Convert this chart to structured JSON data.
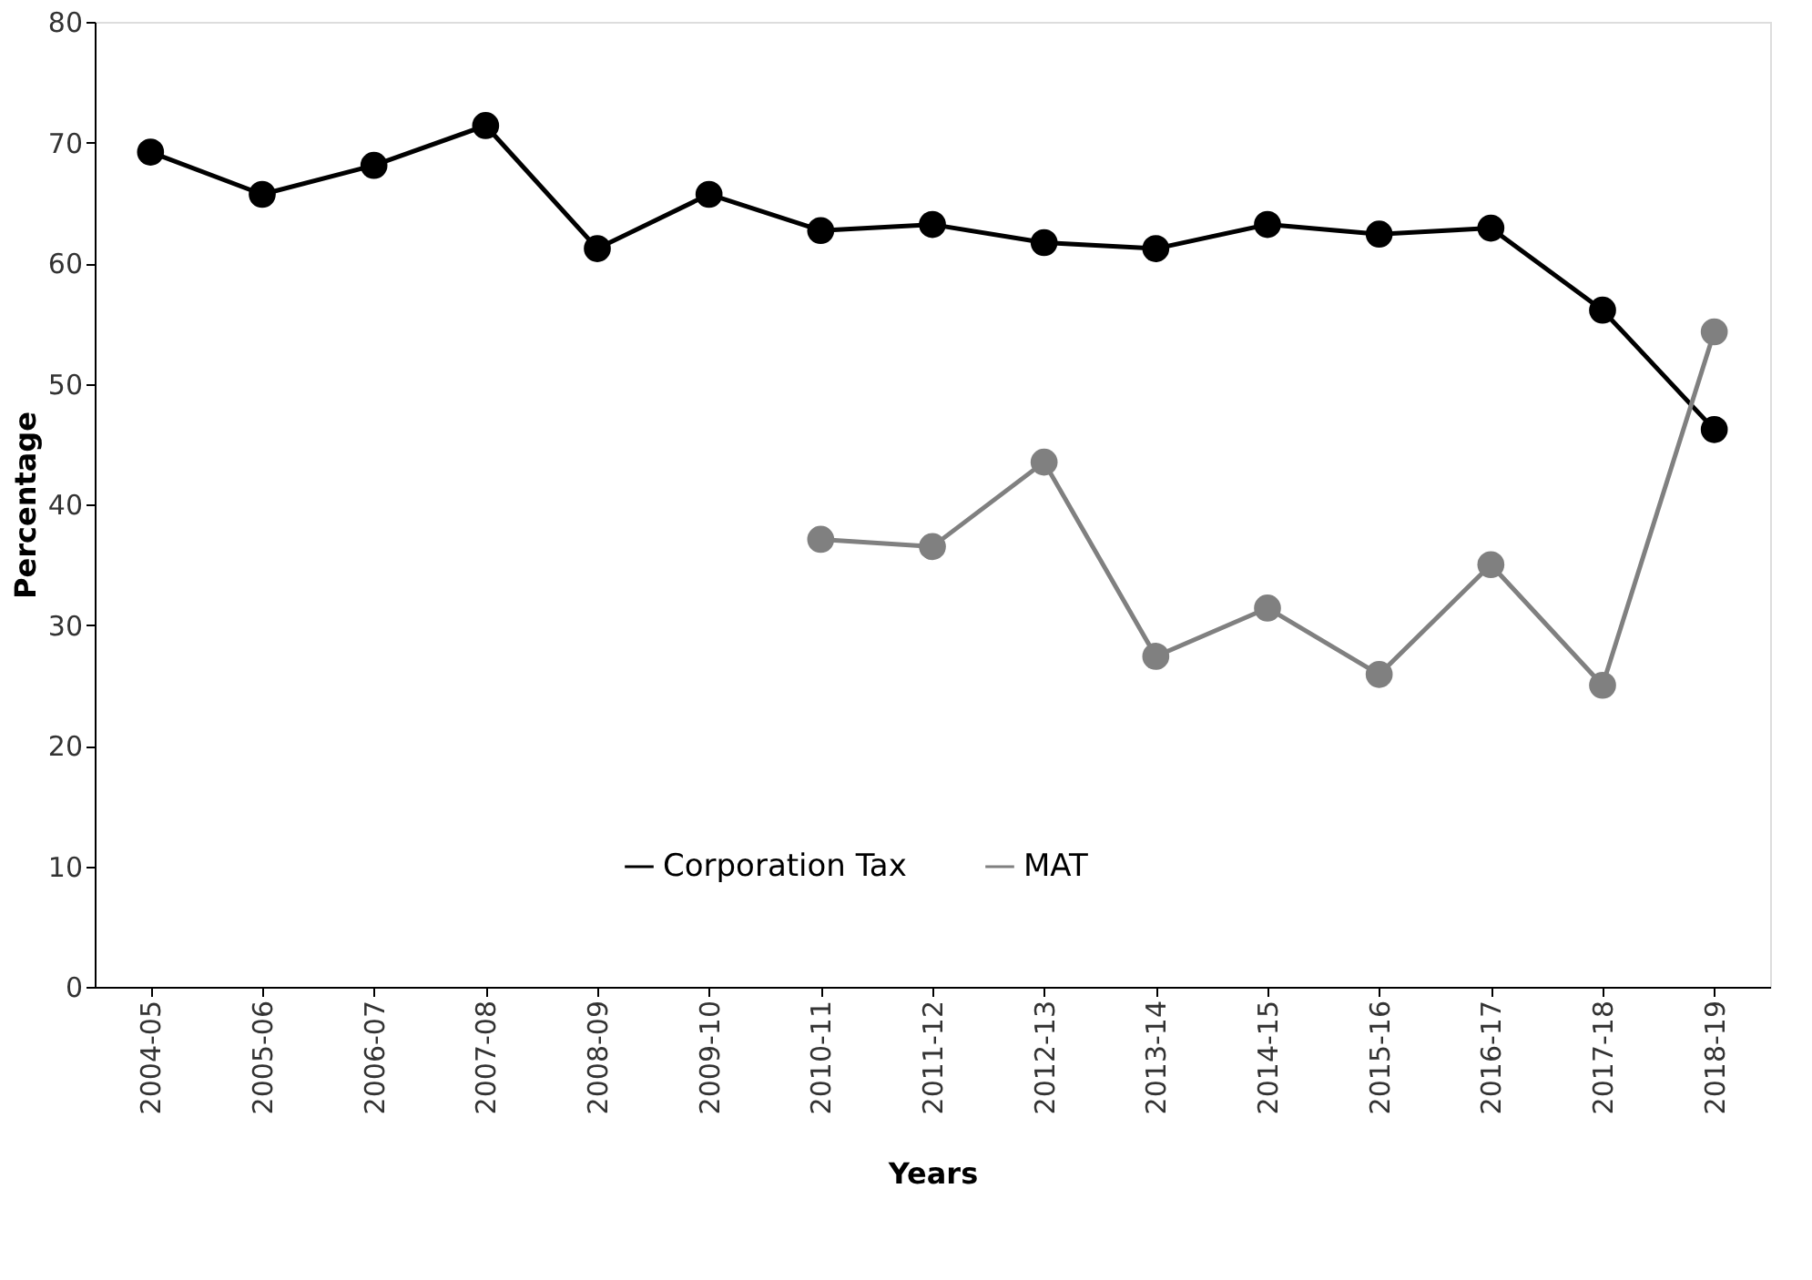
{
  "chart_data": {
    "type": "line",
    "xlabel": "Years",
    "ylabel": "Percentage",
    "categories": [
      "2004-05",
      "2005-06",
      "2006-07",
      "2007-08",
      "2008-09",
      "2009-10",
      "2010-11",
      "2011-12",
      "2012-13",
      "2013-14",
      "2014-15",
      "2015-16",
      "2016-17",
      "2017-18",
      "2018-19"
    ],
    "series": [
      {
        "name": "Corporation Tax",
        "color": "#000000",
        "values": [
          69.2,
          65.7,
          68.1,
          71.4,
          61.2,
          65.7,
          62.7,
          63.2,
          61.7,
          61.2,
          63.2,
          62.4,
          62.9,
          56.1,
          46.2
        ]
      },
      {
        "name": "MAT",
        "color": "#808080",
        "values": [
          null,
          null,
          null,
          null,
          null,
          null,
          37.1,
          36.5,
          43.5,
          27.4,
          31.4,
          25.9,
          35.0,
          25.0,
          54.3
        ]
      }
    ],
    "ylim": [
      0,
      80
    ],
    "yticks": [
      0,
      10,
      20,
      30,
      40,
      50,
      60,
      70,
      80
    ],
    "grid": false,
    "legend": "bottom",
    "marker": "circle",
    "line_style": "solid"
  }
}
